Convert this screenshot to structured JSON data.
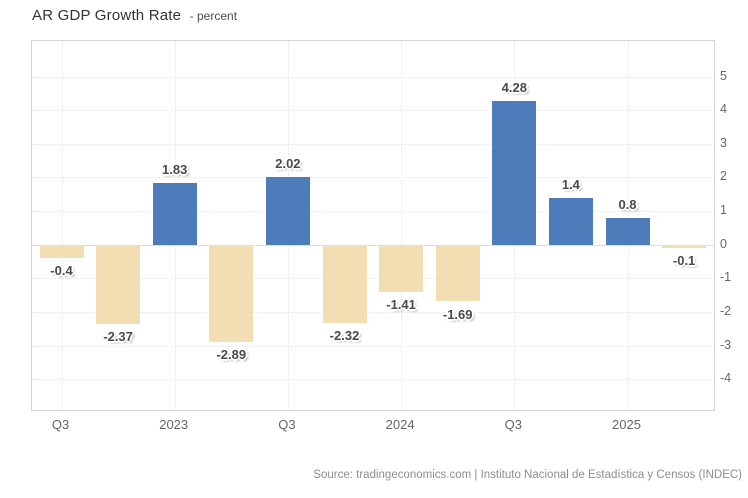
{
  "header": {
    "title": "AR GDP Growth Rate",
    "unit_label": "- percent"
  },
  "footer": {
    "source": "Source: tradingeconomics.com | Instituto Nacional de Estadística y Censos (INDEC)"
  },
  "colors": {
    "positive_bar": "#4d7cba",
    "negative_bar": "#f3deb3",
    "grid": "#e5e5e5",
    "axis_text": "#666666",
    "value_label": "#4a4a4a"
  },
  "chart_data": {
    "type": "bar",
    "title": "AR GDP Growth Rate",
    "ylabel": "percent",
    "values": [
      -0.4,
      -2.37,
      1.83,
      -2.89,
      2.02,
      -2.32,
      -1.41,
      -1.69,
      4.28,
      1.4,
      0.8,
      -0.1
    ],
    "data_labels": [
      "-0.4",
      "-2.37",
      "1.83",
      "-2.89",
      "2.02",
      "-2.32",
      "-1.41",
      "-1.69",
      "4.28",
      "1.4",
      "0.8",
      "-0.1"
    ],
    "x_tick_labels": [
      "Q3",
      "2023",
      "Q3",
      "2024",
      "Q3",
      "2025"
    ],
    "x_tick_bar_indices": [
      0,
      2,
      4,
      6,
      8,
      10
    ],
    "y_ticks": [
      5,
      4,
      3,
      2,
      1,
      0,
      -1,
      -2,
      -3,
      -4
    ],
    "ylim": [
      -4.92,
      6.06
    ],
    "grid": true,
    "legend": false,
    "y_axis_side": "right"
  }
}
